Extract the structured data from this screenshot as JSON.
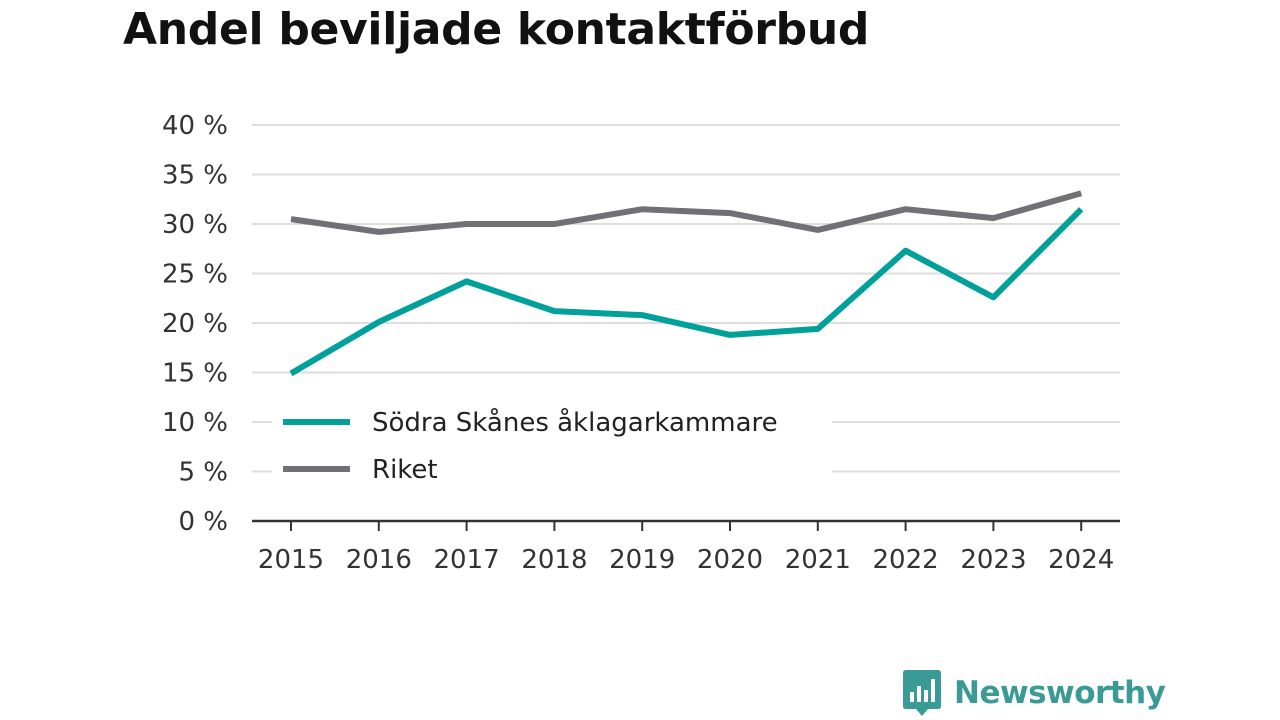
{
  "title": "Andel beviljade kontaktförbud",
  "brand": {
    "name": "Newsworthy",
    "icon": "newsworthy-logo-icon",
    "color": "#3a9a96"
  },
  "chart_data": {
    "type": "line",
    "title": "Andel beviljade kontaktförbud",
    "xlabel": "",
    "ylabel": "",
    "x": [
      "2015",
      "2016",
      "2017",
      "2018",
      "2019",
      "2020",
      "2021",
      "2022",
      "2023",
      "2024"
    ],
    "ylim": [
      0,
      40
    ],
    "yticks": [
      0,
      5,
      10,
      15,
      20,
      25,
      30,
      35,
      40
    ],
    "ytick_labels": [
      "0 %",
      "5 %",
      "10 %",
      "15 %",
      "20 %",
      "25 %",
      "30 %",
      "35 %",
      "40 %"
    ],
    "grid": true,
    "legend_position": "bottom-left",
    "series": [
      {
        "name": "Södra Skånes åklagarkammare",
        "color": "#00a19a",
        "values": [
          14.9,
          20.1,
          24.2,
          21.2,
          20.8,
          18.8,
          19.4,
          27.3,
          22.6,
          31.5
        ]
      },
      {
        "name": "Riket",
        "color": "#707075",
        "values": [
          30.5,
          29.2,
          30.0,
          30.0,
          31.5,
          31.1,
          29.4,
          31.5,
          30.6,
          33.1
        ]
      }
    ]
  }
}
